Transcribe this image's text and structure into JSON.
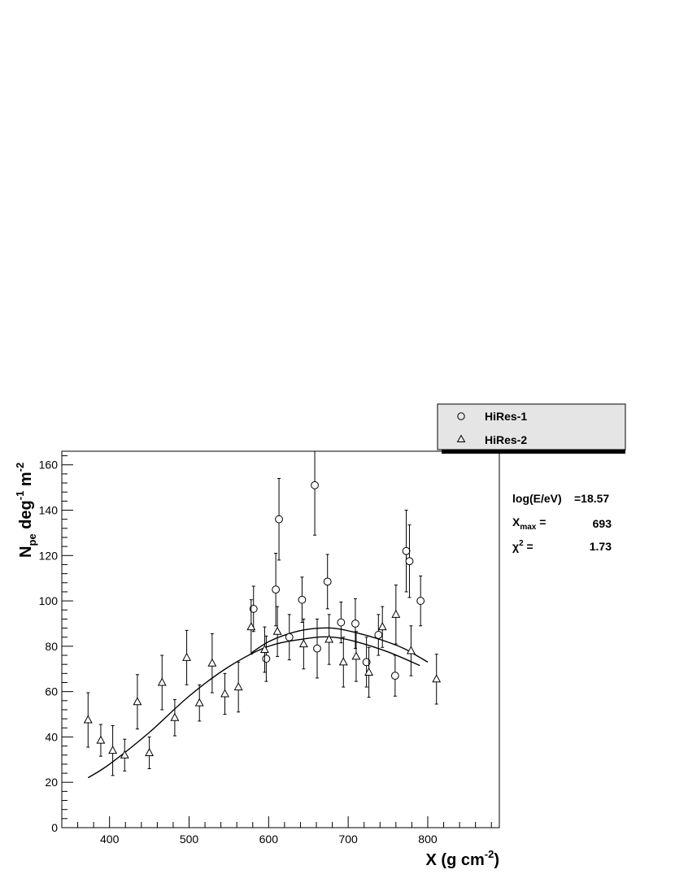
{
  "chart_data": {
    "type": "scatter",
    "title": "",
    "xlabel": {
      "main": "X (g cm",
      "sup": "-2",
      "close": ")"
    },
    "ylabel": {
      "n": "N",
      "sub": "pe",
      "deg": " deg",
      "sup1": "-1",
      "m": " m",
      "sup2": "-2"
    },
    "xlim": [
      340,
      890
    ],
    "ylim": [
      0,
      166
    ],
    "xticks": [
      400,
      500,
      600,
      700,
      800
    ],
    "yticks": [
      0,
      20,
      40,
      60,
      80,
      100,
      120,
      140,
      160
    ],
    "legend_position": "top-right, outside frame",
    "series": [
      {
        "name": "HiRes-1",
        "marker": "open-circle",
        "points": [
          {
            "x": 581,
            "y": 96.5,
            "e": 10
          },
          {
            "x": 597,
            "y": 74.5,
            "e": 10
          },
          {
            "x": 609,
            "y": 105,
            "e": 16
          },
          {
            "x": 613,
            "y": 136,
            "e": 18
          },
          {
            "x": 626,
            "y": 84,
            "e": 10
          },
          {
            "x": 642,
            "y": 100.5,
            "e": 10
          },
          {
            "x": 658,
            "y": 151,
            "e": 22
          },
          {
            "x": 661,
            "y": 79,
            "e": 13
          },
          {
            "x": 674,
            "y": 108.5,
            "e": 12
          },
          {
            "x": 691,
            "y": 90.5,
            "e": 9
          },
          {
            "x": 709,
            "y": 90,
            "e": 11
          },
          {
            "x": 723,
            "y": 73,
            "e": 11
          },
          {
            "x": 738,
            "y": 85,
            "e": 9
          },
          {
            "x": 759,
            "y": 67,
            "e": 9
          },
          {
            "x": 773,
            "y": 122,
            "e": 18
          },
          {
            "x": 777,
            "y": 117.5,
            "e": 16
          },
          {
            "x": 791,
            "y": 100,
            "e": 11
          }
        ]
      },
      {
        "name": "HiRes-2",
        "marker": "open-triangle",
        "points": [
          {
            "x": 373,
            "y": 47.5,
            "e": 12
          },
          {
            "x": 389,
            "y": 38.5,
            "e": 7
          },
          {
            "x": 404,
            "y": 34,
            "e": 11
          },
          {
            "x": 419,
            "y": 32,
            "e": 7
          },
          {
            "x": 435,
            "y": 55.5,
            "e": 12
          },
          {
            "x": 450,
            "y": 33,
            "e": 7
          },
          {
            "x": 466,
            "y": 64,
            "e": 12
          },
          {
            "x": 482,
            "y": 48.5,
            "e": 8
          },
          {
            "x": 497,
            "y": 75,
            "e": 12
          },
          {
            "x": 513,
            "y": 55,
            "e": 8
          },
          {
            "x": 529,
            "y": 72.5,
            "e": 13
          },
          {
            "x": 545,
            "y": 59,
            "e": 9
          },
          {
            "x": 562,
            "y": 62,
            "e": 11
          },
          {
            "x": 578,
            "y": 88.5,
            "e": 12
          },
          {
            "x": 595,
            "y": 78.5,
            "e": 10
          },
          {
            "x": 611,
            "y": 86.5,
            "e": 11
          },
          {
            "x": 644,
            "y": 81,
            "e": 11
          },
          {
            "x": 676,
            "y": 83,
            "e": 11
          },
          {
            "x": 694,
            "y": 73,
            "e": 11
          },
          {
            "x": 710,
            "y": 75.5,
            "e": 11
          },
          {
            "x": 726,
            "y": 68.5,
            "e": 11
          },
          {
            "x": 743,
            "y": 88.5,
            "e": 9
          },
          {
            "x": 760,
            "y": 94,
            "e": 13
          },
          {
            "x": 779,
            "y": 78,
            "e": 11
          },
          {
            "x": 811,
            "y": 65.5,
            "e": 11
          }
        ]
      }
    ],
    "fits": [
      {
        "points": [
          [
            373,
            22
          ],
          [
            400,
            28
          ],
          [
            450,
            42
          ],
          [
            500,
            58
          ],
          [
            550,
            71
          ],
          [
            600,
            80
          ],
          [
            650,
            83.5
          ],
          [
            680,
            84
          ],
          [
            710,
            82
          ],
          [
            750,
            77.5
          ],
          [
            790,
            71.5
          ]
        ]
      },
      {
        "points": [
          [
            578,
            77
          ],
          [
            600,
            82
          ],
          [
            625,
            85.5
          ],
          [
            650,
            87.5
          ],
          [
            680,
            88
          ],
          [
            710,
            86
          ],
          [
            740,
            83
          ],
          [
            770,
            79
          ],
          [
            800,
            73
          ]
        ]
      }
    ],
    "stats": {
      "energy_label": "log(E/eV)",
      "energy_value": "=18.57",
      "xmax_label": "X",
      "xmax_sub": "max",
      "xmax_eq": " =",
      "xmax_value": "693",
      "chi_label": "χ",
      "chi_sup": "2",
      "chi_eq": " =",
      "chi_value": "1.73"
    }
  }
}
